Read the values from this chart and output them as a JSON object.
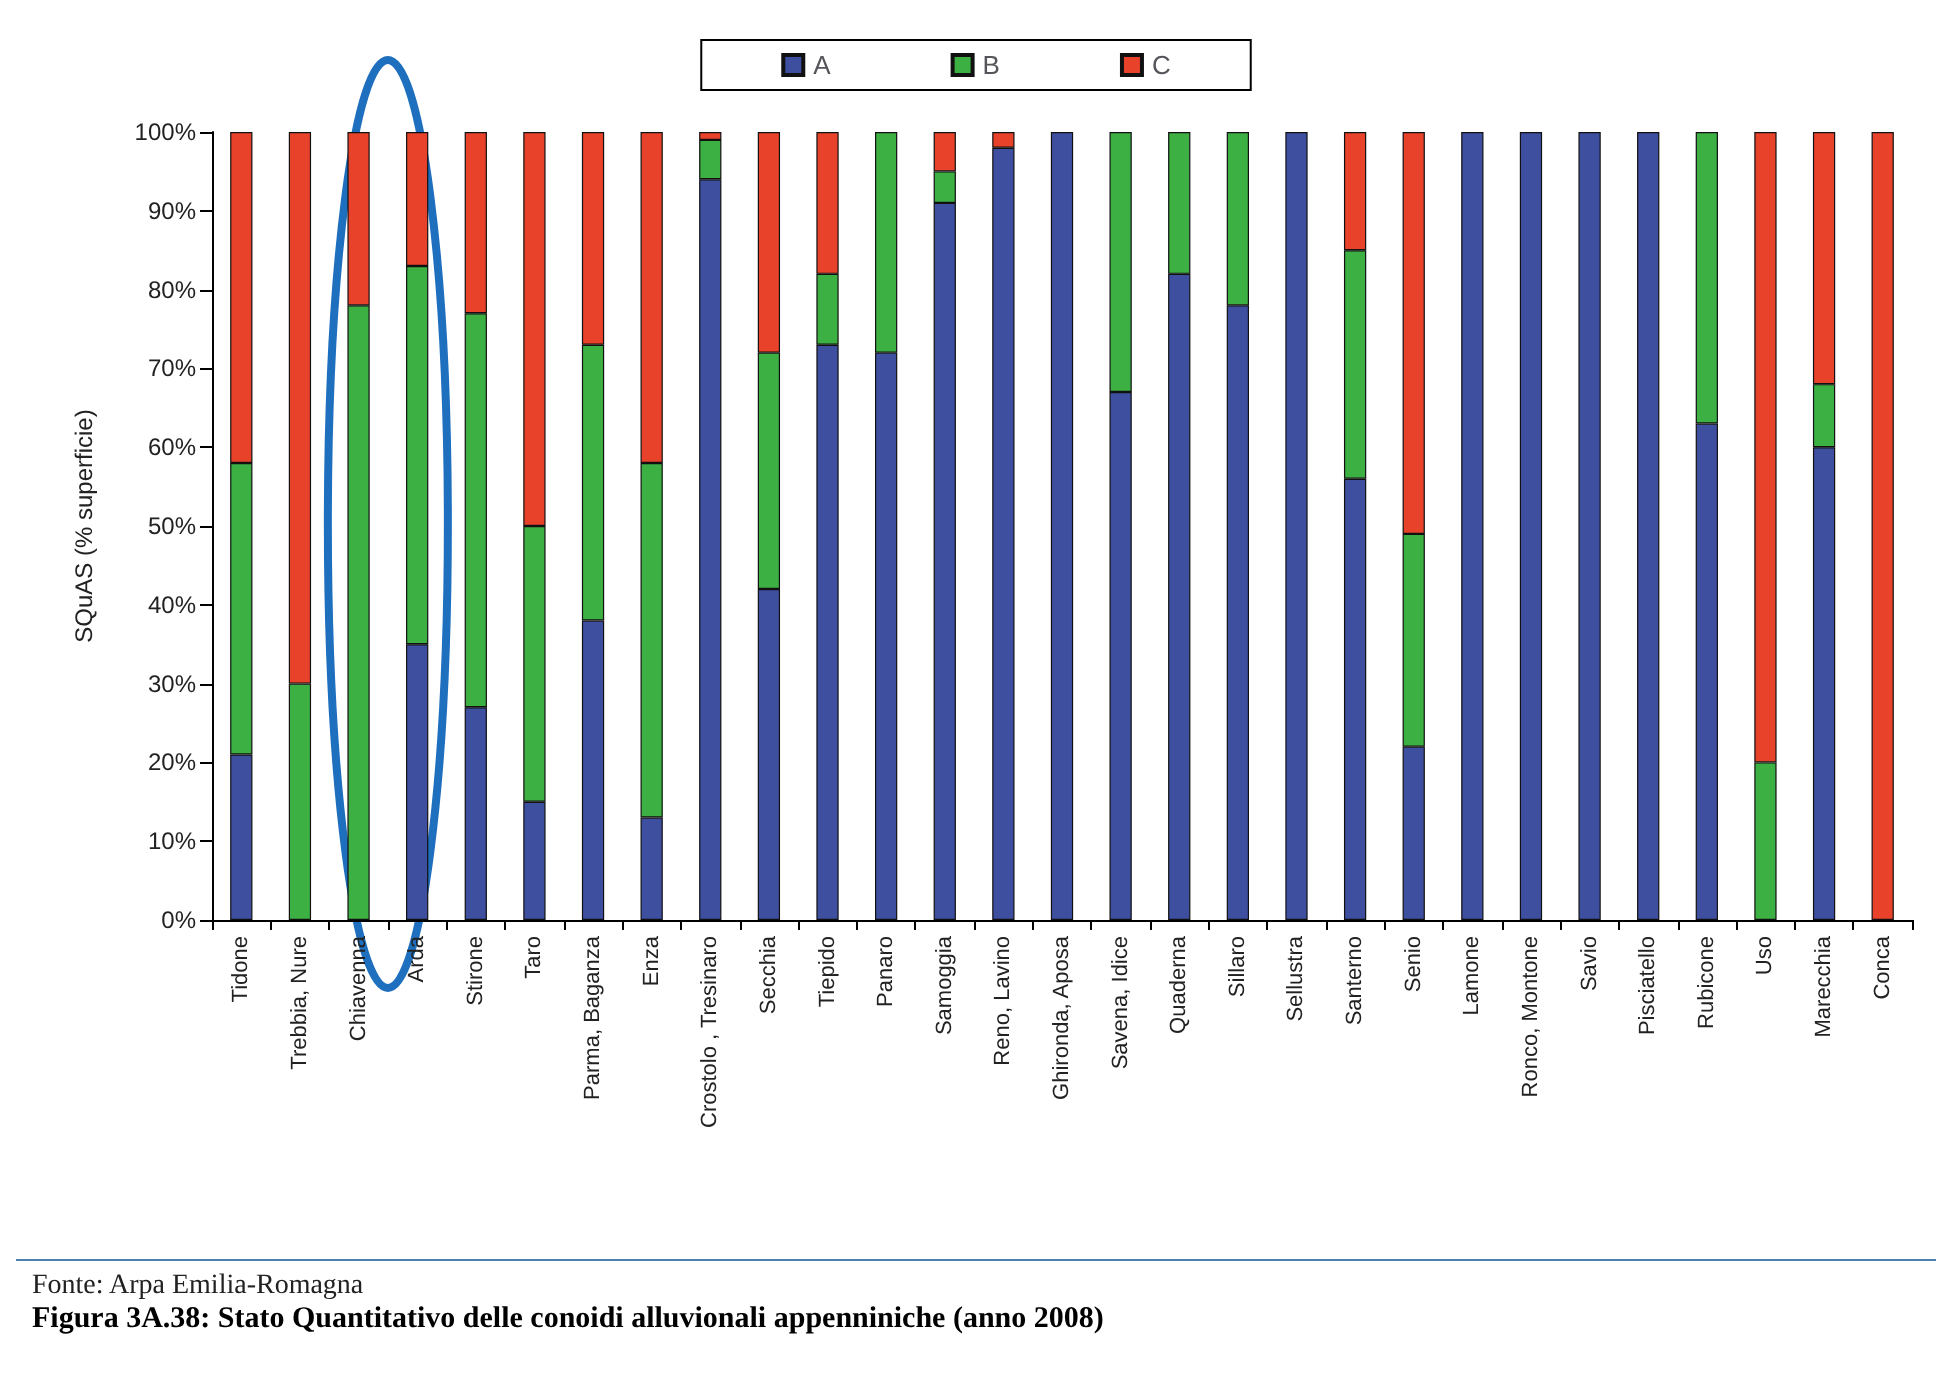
{
  "chart_data": {
    "type": "bar",
    "stacked": true,
    "title": "Figura 3A.38: Stato Quantitativo delle conoidi alluvionali appenniniche (anno 2008)",
    "ylabel": "SQuAS (% superficie)",
    "annotations": [
      "Fonte: Arpa Emilia-Romagna"
    ],
    "categories": [
      "Tidone",
      "Trebbia, Nure",
      "Chiavenna",
      "Arda",
      "Stirone",
      "Taro",
      "Parma, Baganza",
      "Enza",
      "Crostolo , Tresinaro",
      "Secchia",
      "Tiepido",
      "Panaro",
      "Samoggia",
      "Reno, Lavino",
      "Ghironda, Aposa",
      "Savena, Idice",
      "Quaderna",
      "Sillaro",
      "Sellustra",
      "Santerno",
      "Senio",
      "Lamone",
      "Ronco, Montone",
      "Savio",
      "Pisciatello",
      "Rubicone",
      "Uso",
      "Marecchia",
      "Conca"
    ],
    "series": [
      {
        "name": "A",
        "color": "#3f4fa0",
        "values": [
          21,
          0,
          0,
          35,
          27,
          15,
          38,
          13,
          94,
          42,
          73,
          72,
          91,
          98,
          100,
          67,
          82,
          78,
          100,
          56,
          22,
          100,
          100,
          100,
          100,
          63,
          0,
          60,
          0
        ]
      },
      {
        "name": "B",
        "color": "#3cb043",
        "values": [
          37,
          30,
          78,
          48,
          50,
          35,
          35,
          45,
          5,
          30,
          9,
          28,
          4,
          0,
          0,
          33,
          18,
          22,
          0,
          29,
          27,
          0,
          0,
          0,
          0,
          37,
          20,
          8,
          0
        ]
      },
      {
        "name": "C",
        "color": "#e8432a",
        "values": [
          42,
          70,
          22,
          17,
          23,
          50,
          27,
          42,
          1,
          28,
          18,
          0,
          5,
          2,
          0,
          0,
          0,
          0,
          0,
          15,
          51,
          0,
          0,
          0,
          0,
          0,
          80,
          32,
          100
        ]
      }
    ],
    "ylim": [
      0,
      100
    ],
    "yticks": [
      {
        "value": 0,
        "label": "0%"
      },
      {
        "value": 10,
        "label": "10%"
      },
      {
        "value": 20,
        "label": "20%"
      },
      {
        "value": 30,
        "label": "30%"
      },
      {
        "value": 40,
        "label": "40%"
      },
      {
        "value": 50,
        "label": "50%"
      },
      {
        "value": 60,
        "label": "60%"
      },
      {
        "value": 70,
        "label": "70%"
      },
      {
        "value": 80,
        "label": "80%"
      },
      {
        "value": 90,
        "label": "90%"
      },
      {
        "value": 100,
        "label": "100%"
      }
    ],
    "grid": false,
    "legend": "top"
  }
}
